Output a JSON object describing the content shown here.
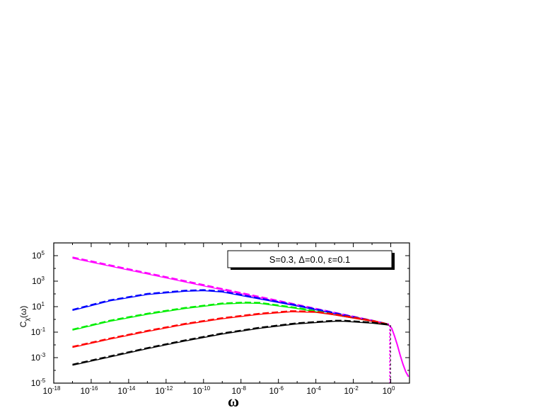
{
  "chart_data": {
    "type": "line",
    "title": "",
    "xlabel": "ω",
    "ylabel": "C_χ(ω)",
    "x_scale": "log",
    "y_scale": "log",
    "xlim_exponents": [
      -18,
      1
    ],
    "ylim_exponents": [
      -5,
      6
    ],
    "x_tick_labels": [
      "10-18",
      "10-16",
      "10-14",
      "10-12",
      "10-10",
      "10-8",
      "10-6",
      "10-4",
      "10-2",
      "100"
    ],
    "x_tick_exponents": [
      -18,
      -16,
      -14,
      -12,
      -10,
      -8,
      -6,
      -4,
      -2,
      0
    ],
    "y_tick_labels": [
      "10-5",
      "10-3",
      "10-1",
      "101",
      "103",
      "105"
    ],
    "y_tick_exponents": [
      -5,
      -3,
      -1,
      1,
      3,
      5
    ],
    "grid": false,
    "legend_position": "top-right",
    "annotation": "S=0.3, Δ=0.0, ε=0.1",
    "series": [
      {
        "color": "#ff00ff",
        "dashed_offset": 0.08,
        "log_x": [
          -17,
          -15,
          -13,
          -11,
          -9,
          -7,
          -5,
          -3,
          -1,
          -0.1
        ],
        "log_y": [
          4.8,
          4.18,
          3.56,
          2.94,
          2.32,
          1.7,
          1.08,
          0.46,
          -0.16,
          -0.45
        ]
      },
      {
        "color": "#0000ff",
        "dashed_offset": 0.06,
        "log_x": [
          -17,
          -15,
          -13,
          -11,
          -10,
          -9,
          -7,
          -5,
          -3,
          -1,
          -0.1
        ],
        "log_y": [
          0.7,
          1.45,
          1.95,
          2.2,
          2.25,
          2.15,
          1.6,
          1.05,
          0.45,
          -0.15,
          -0.45
        ]
      },
      {
        "color": "#00ee00",
        "dashed_offset": 0.06,
        "log_x": [
          -17,
          -15,
          -13,
          -11,
          -9,
          -7.8,
          -7,
          -5,
          -3,
          -1,
          -0.1
        ],
        "log_y": [
          -0.85,
          -0.15,
          0.4,
          0.85,
          1.2,
          1.28,
          1.25,
          0.85,
          0.35,
          -0.15,
          -0.45
        ]
      },
      {
        "color": "#ff0000",
        "dashed_offset": 0.06,
        "log_x": [
          -17,
          -15,
          -13,
          -11,
          -9,
          -7,
          -5.3,
          -4,
          -3,
          -1,
          -0.1
        ],
        "log_y": [
          -2.2,
          -1.55,
          -0.95,
          -0.4,
          0.05,
          0.4,
          0.6,
          0.55,
          0.35,
          -0.15,
          -0.45
        ]
      },
      {
        "color": "#000000",
        "dashed_offset": 0.06,
        "log_x": [
          -17,
          -15,
          -13,
          -11,
          -9,
          -7,
          -5,
          -3,
          -2.5,
          -1,
          -0.1
        ],
        "log_y": [
          -3.6,
          -2.95,
          -2.3,
          -1.7,
          -1.15,
          -0.7,
          -0.35,
          -0.15,
          -0.15,
          -0.3,
          -0.45
        ]
      }
    ],
    "tail": {
      "color": "#ff00ff",
      "log_x": [
        -0.1,
        0.05,
        0.2,
        0.35,
        0.5,
        0.65,
        0.8,
        0.95
      ],
      "log_y": [
        -0.45,
        -0.7,
        -1.3,
        -2.0,
        -2.8,
        -3.5,
        -4.1,
        -4.5
      ]
    }
  }
}
